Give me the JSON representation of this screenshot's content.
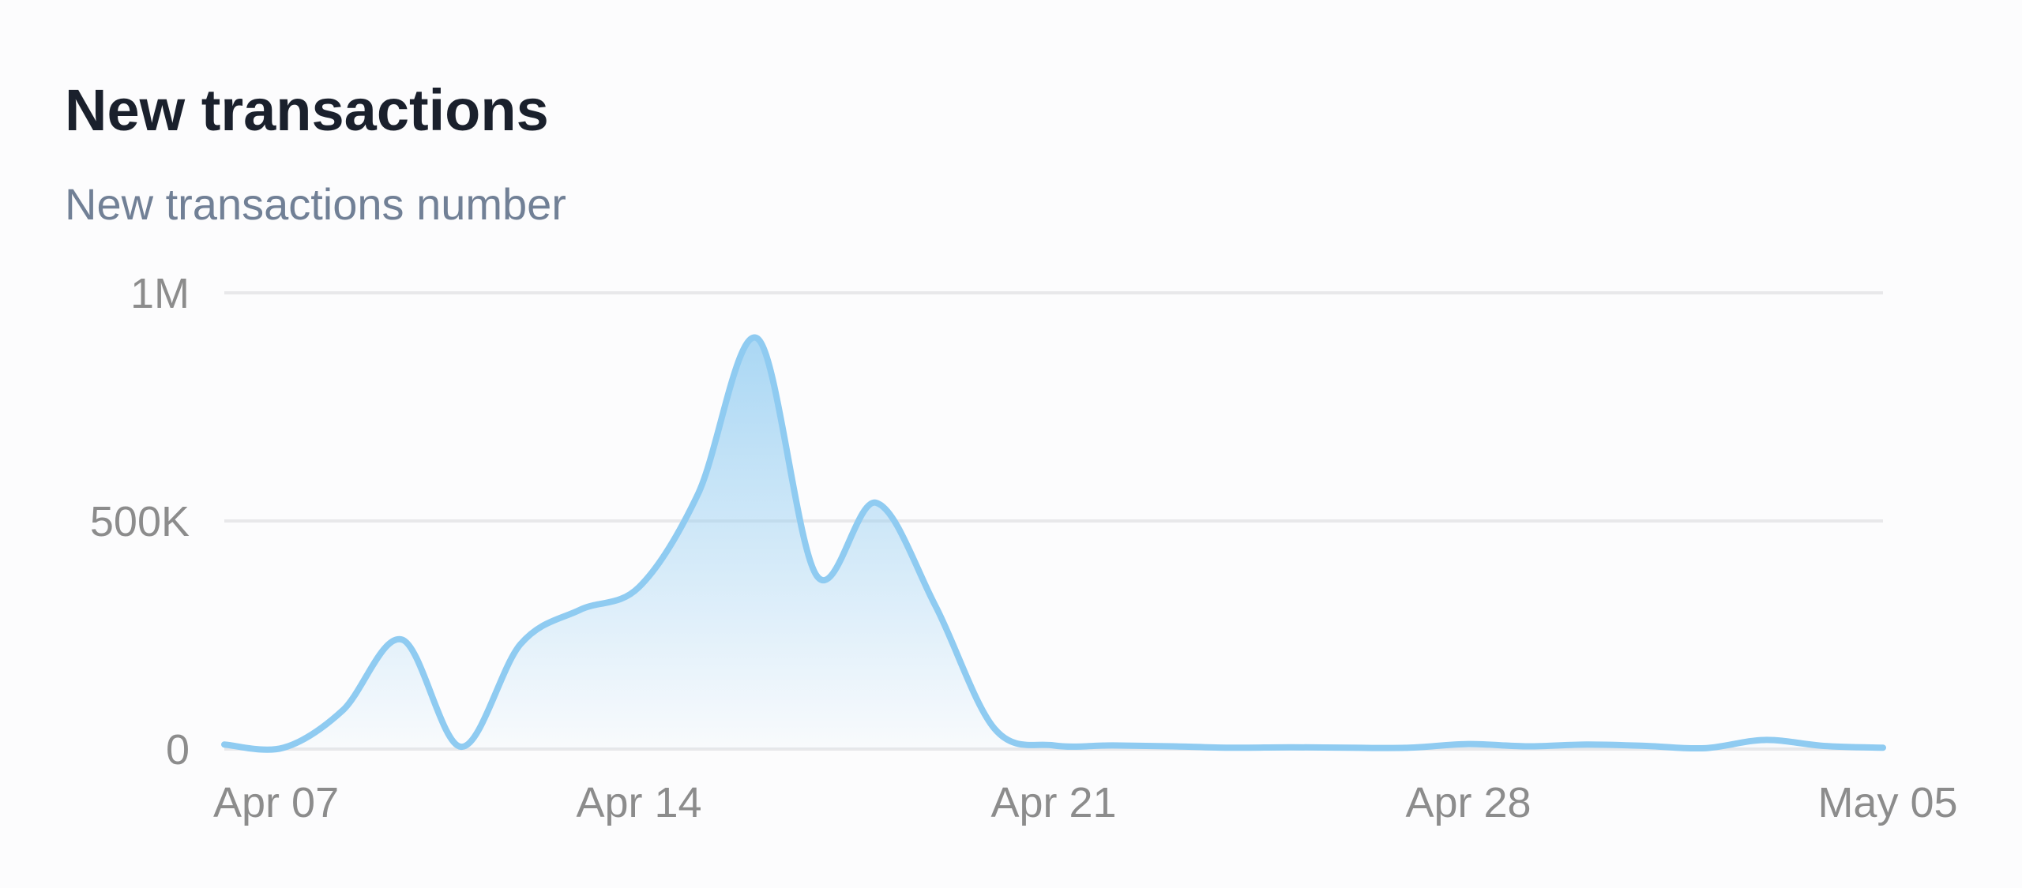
{
  "chart_data": {
    "type": "area",
    "title": "New transactions",
    "subtitle": "New transactions number",
    "categories": [
      "Apr 07",
      null,
      null,
      null,
      null,
      null,
      null,
      "Apr 14",
      null,
      null,
      null,
      null,
      null,
      null,
      "Apr 21",
      null,
      null,
      null,
      null,
      null,
      null,
      "Apr 28",
      null,
      null,
      null,
      null,
      null,
      null,
      "May 05"
    ],
    "values": [
      10000,
      3000,
      85000,
      240000,
      5000,
      230000,
      305000,
      355000,
      560000,
      900000,
      380000,
      540000,
      315000,
      45000,
      8000,
      8000,
      6000,
      3000,
      4000,
      3000,
      3000,
      11000,
      6000,
      10000,
      7000,
      2000,
      20000,
      7000,
      3000
    ],
    "color": "#8fcbf1",
    "ylim": [
      0,
      1000000
    ],
    "yticks": [
      0,
      {
        "value": 500000,
        "label": "500K"
      },
      {
        "value": 1000000,
        "label": "1M"
      }
    ],
    "grid": true
  }
}
